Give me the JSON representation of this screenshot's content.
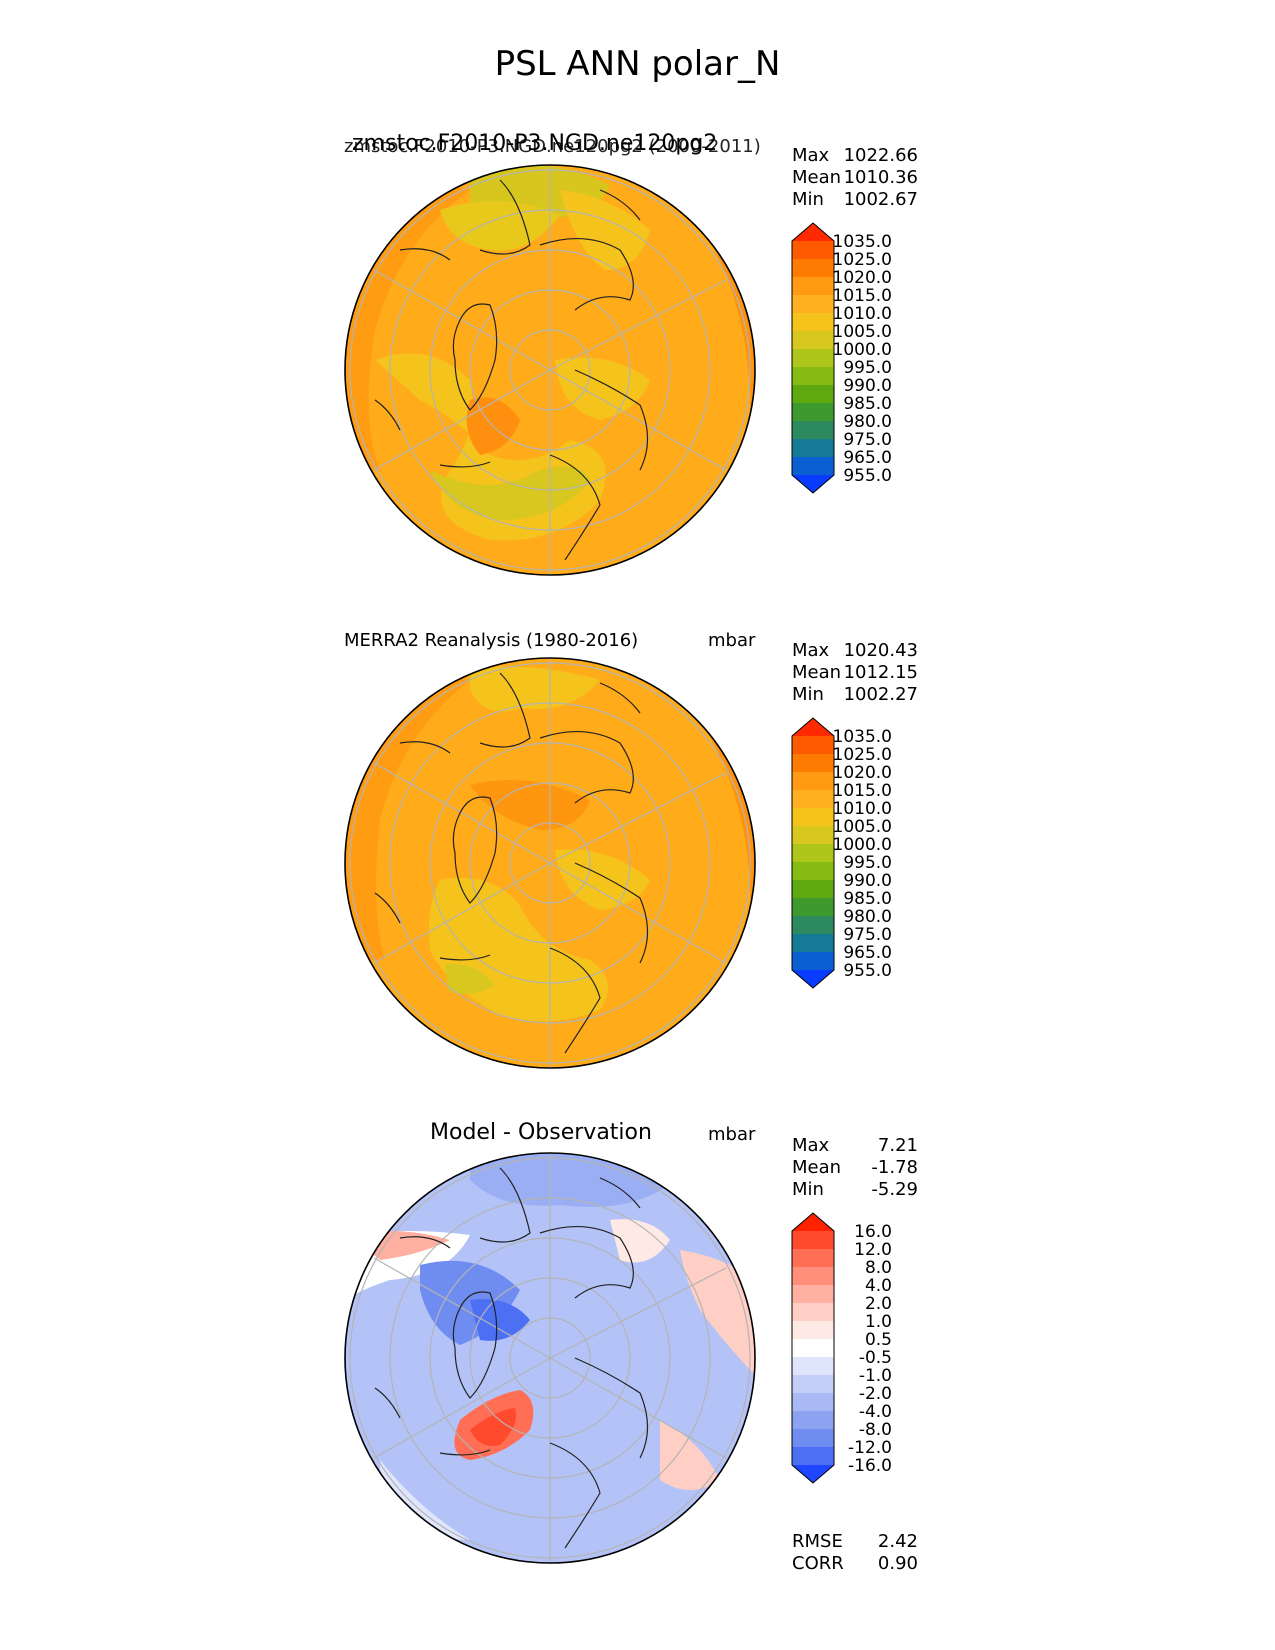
{
  "figure": {
    "title": "PSL ANN polar_N"
  },
  "panels": [
    {
      "id": "test",
      "title_left": "zmstoc.F2010-P3.NGD.ne120pg2",
      "title_overlap": "zmstoc.F2010-P3.NGD.ne120pg2 (2000-2011)",
      "units": "",
      "stats": {
        "max_label": "Max",
        "max": "1022.66",
        "mean_label": "Mean",
        "mean": "1010.36",
        "min_label": "Min",
        "min": "1002.67"
      },
      "colorbar": {
        "ticks": [
          "1035.0",
          "1025.0",
          "1020.0",
          "1015.0",
          "1010.0",
          "1005.0",
          "1000.0",
          "995.0",
          "990.0",
          "985.0",
          "980.0",
          "975.0",
          "965.0",
          "955.0"
        ],
        "colors": [
          "#ff2a00",
          "#ff5a00",
          "#ff7a00",
          "#ff9a12",
          "#ffb020",
          "#f4c31c",
          "#d8c71e",
          "#aec61a",
          "#86bb14",
          "#5da90f",
          "#3f9a2e",
          "#2c8a5e",
          "#157a96",
          "#0a60d2",
          "#0a3cff"
        ]
      }
    },
    {
      "id": "reference",
      "title_left": "MERRA2 Reanalysis (1980-2016)",
      "units": "mbar",
      "stats": {
        "max_label": "Max",
        "max": "1020.43",
        "mean_label": "Mean",
        "mean": "1012.15",
        "min_label": "Min",
        "min": "1002.27"
      },
      "colorbar": {
        "ticks": [
          "1035.0",
          "1025.0",
          "1020.0",
          "1015.0",
          "1010.0",
          "1005.0",
          "1000.0",
          "995.0",
          "990.0",
          "985.0",
          "980.0",
          "975.0",
          "965.0",
          "955.0"
        ],
        "colors": [
          "#ff2a00",
          "#ff5a00",
          "#ff7a00",
          "#ff9a12",
          "#ffb020",
          "#f4c31c",
          "#d8c71e",
          "#aec61a",
          "#86bb14",
          "#5da90f",
          "#3f9a2e",
          "#2c8a5e",
          "#157a96",
          "#0a60d2",
          "#0a3cff"
        ]
      }
    },
    {
      "id": "diff",
      "title_center": "Model - Observation",
      "units": "mbar",
      "stats": {
        "max_label": "Max",
        "max": "7.21",
        "mean_label": "Mean",
        "mean": "-1.78",
        "min_label": "Min",
        "min": "-5.29"
      },
      "colorbar": {
        "ticks": [
          "16.0",
          "12.0",
          "8.0",
          "4.0",
          "2.0",
          "1.0",
          "0.5",
          "-0.5",
          "-1.0",
          "-2.0",
          "-4.0",
          "-8.0",
          "-12.0",
          "-16.0"
        ],
        "colors": [
          "#ff2200",
          "#ff4a2e",
          "#ff6e55",
          "#ff8f7a",
          "#ffb0a0",
          "#ffcfc6",
          "#ffe9e5",
          "#ffffff",
          "#dfe5fb",
          "#c4cff8",
          "#a9b9f5",
          "#8ca3f2",
          "#6f8cf0",
          "#4d6ff3",
          "#1f47ff"
        ]
      },
      "footer": {
        "rmse_label": "RMSE",
        "rmse": "2.42",
        "corr_label": "CORR",
        "corr": "0.90"
      }
    }
  ],
  "chart_data": [
    {
      "type": "heatmap",
      "projection": "north polar stereographic",
      "title": "zmstoc.F2010-P3.NGD.ne120pg2 (2000-2011)",
      "variable": "PSL",
      "season": "ANN",
      "units": "mbar",
      "levels": [
        955,
        965,
        975,
        980,
        985,
        990,
        995,
        1000,
        1005,
        1010,
        1015,
        1020,
        1025,
        1035
      ],
      "summary": {
        "max": 1022.66,
        "mean": 1010.36,
        "min": 1002.67
      }
    },
    {
      "type": "heatmap",
      "projection": "north polar stereographic",
      "title": "MERRA2 Reanalysis (1980-2016)",
      "variable": "PSL",
      "season": "ANN",
      "units": "mbar",
      "levels": [
        955,
        965,
        975,
        980,
        985,
        990,
        995,
        1000,
        1005,
        1010,
        1015,
        1020,
        1025,
        1035
      ],
      "summary": {
        "max": 1020.43,
        "mean": 1012.15,
        "min": 1002.27
      }
    },
    {
      "type": "heatmap",
      "projection": "north polar stereographic",
      "title": "Model - Observation",
      "variable": "PSL",
      "season": "ANN",
      "units": "mbar",
      "levels": [
        -16,
        -12,
        -8,
        -4,
        -2,
        -1,
        -0.5,
        0.5,
        1,
        2,
        4,
        8,
        12,
        16
      ],
      "summary": {
        "max": 7.21,
        "mean": -1.78,
        "min": -5.29,
        "rmse": 2.42,
        "corr": 0.9
      }
    }
  ]
}
